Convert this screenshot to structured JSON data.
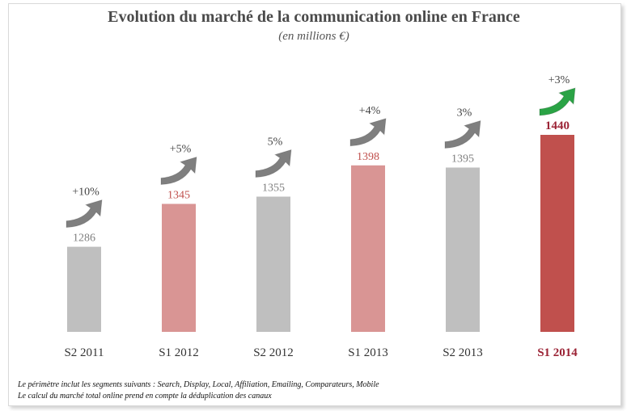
{
  "chart_data": {
    "type": "bar",
    "title": "Evolution du marché de la communication online en France",
    "subtitle": "(en millions €)",
    "categories": [
      "S2 2011",
      "S1 2012",
      "S2 2012",
      "S1 2013",
      "S2 2013",
      "S1 2014"
    ],
    "values": [
      1286,
      1345,
      1355,
      1398,
      1395,
      1440
    ],
    "value_labels": [
      "1286",
      "1345",
      "1355",
      "1398",
      "1395",
      "1440"
    ],
    "growth_labels": [
      "+10%",
      "+5%",
      "5%",
      "+4%",
      "3%",
      "+3%"
    ],
    "bar_colors": [
      "#bfbfbf",
      "#d99594",
      "#bfbfbf",
      "#d99594",
      "#bfbfbf",
      "#c0504d"
    ],
    "label_colors": [
      "#7f7f7f",
      "#c0504d",
      "#7f7f7f",
      "#c0504d",
      "#7f7f7f",
      "#9b2335"
    ],
    "arrow_colors": [
      "#7f7f7f",
      "#7f7f7f",
      "#7f7f7f",
      "#7f7f7f",
      "#7f7f7f",
      "#2aa345"
    ],
    "highlight_index": 5,
    "grid": false,
    "legend": "none"
  },
  "footnotes": [
    "Le périmètre inclut les segments suivants : Search, Display, Local, Affiliation, Emailing, Comparateurs, Mobile",
    "Le calcul du marché total online prend en compte la déduplication des canaux"
  ]
}
